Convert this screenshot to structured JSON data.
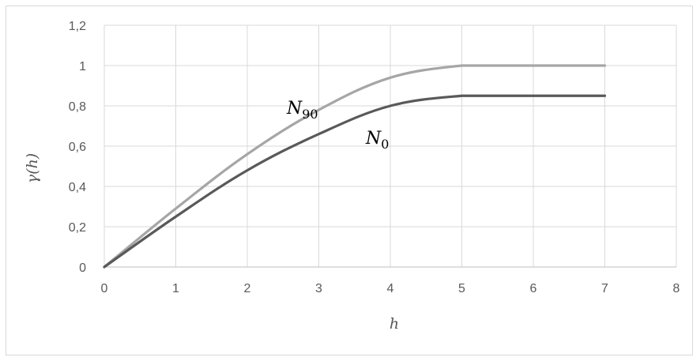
{
  "chart_data": {
    "type": "line",
    "xlabel": "h",
    "ylabel": "γ(h)",
    "xlim": [
      0,
      8
    ],
    "ylim": [
      0,
      1.2
    ],
    "x_ticks": [
      "0",
      "1",
      "2",
      "3",
      "4",
      "5",
      "6",
      "7",
      "8"
    ],
    "y_ticks": [
      "0",
      "0,2",
      "0,4",
      "0,6",
      "0,8",
      "1",
      "1,2"
    ],
    "grid": true,
    "legend": "none",
    "series": [
      {
        "name": "N90",
        "label_main": "N",
        "label_sub": "90",
        "color": "#a6a6a6",
        "x": [
          0,
          1,
          2,
          3,
          4,
          5,
          5.5,
          6,
          7
        ],
        "y": [
          0,
          0.29,
          0.56,
          0.78,
          0.94,
          1.0,
          1.0,
          1.0,
          1.0
        ]
      },
      {
        "name": "N0",
        "label_main": "N",
        "label_sub": "0",
        "color": "#595959",
        "x": [
          0,
          1,
          2,
          3,
          4,
          5,
          5.5,
          6,
          7
        ],
        "y": [
          0,
          0.25,
          0.48,
          0.66,
          0.8,
          0.85,
          0.85,
          0.85,
          0.85
        ]
      }
    ]
  }
}
